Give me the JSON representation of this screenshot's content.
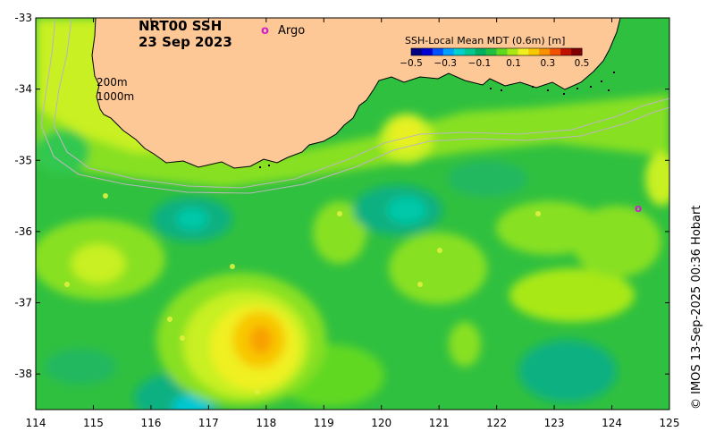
{
  "map": {
    "product": "NRT00 SSH",
    "date": "23 Sep 2023",
    "argo_label": "Argo",
    "argo_marker": "o",
    "isobath_labels": [
      "200m",
      "1000m"
    ],
    "credit": "© IMOS 13-Sep-2025 00:36 Hobart",
    "extent": {
      "lon_min": 114,
      "lon_max": 125,
      "lat_min": -38.5,
      "lat_max": -33
    },
    "lon_ticks": [
      114,
      115,
      116,
      117,
      118,
      119,
      120,
      121,
      122,
      123,
      124,
      125
    ],
    "lat_ticks": [
      -33,
      -34,
      -35,
      -36,
      -37,
      -38
    ],
    "argo_floats": [
      {
        "lon": 124.45,
        "lat": -35.65
      }
    ],
    "colorbar": {
      "title": "SSH-Local Mean MDT (0.6m) [m]",
      "ticks": [
        "−0.5",
        "−0.3",
        "−0.1",
        "0.1",
        "0.3",
        "0.5"
      ],
      "colors": [
        "#000080",
        "#0000d0",
        "#0050ff",
        "#00a0ff",
        "#00d0d0",
        "#00c890",
        "#00b060",
        "#20c040",
        "#60d820",
        "#a8e818",
        "#f0f020",
        "#f8c800",
        "#f89000",
        "#f05000",
        "#c01000",
        "#800000"
      ]
    },
    "colors": {
      "land": "#fdc796",
      "coast": "#000000",
      "isobath": "#b8b8b8",
      "argo": "#d020d0",
      "frame": "#000000",
      "text": "#000000"
    }
  }
}
